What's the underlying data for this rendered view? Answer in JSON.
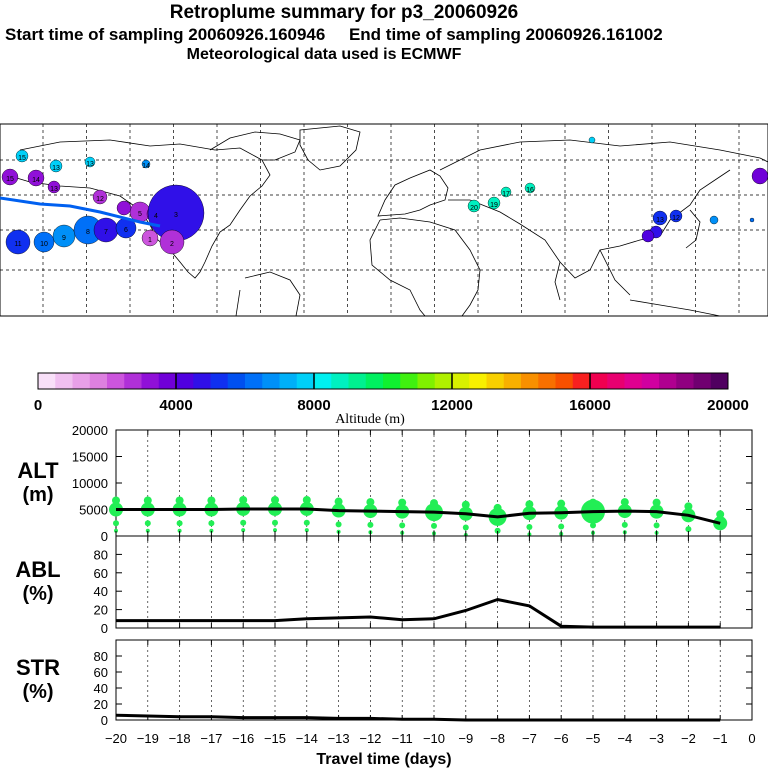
{
  "header": {
    "title": "Retroplume summary for p3_20060926",
    "sampling_line": "Start time of sampling 20060926.160946     End time of sampling 20060926.161002",
    "met_line": "Meteorological data used is ECMWF"
  },
  "map": {
    "numbers_near_points": [
      "15",
      "13",
      "13",
      "14",
      "16",
      "17",
      "19",
      "20",
      "15",
      "14",
      "13",
      "12",
      "11",
      "10",
      "9",
      "8",
      "7",
      "6",
      "5",
      "4",
      "3",
      "2",
      "1",
      "13",
      "12"
    ]
  },
  "colorbar": {
    "tick_labels": [
      "0",
      "4000",
      "8000",
      "12000",
      "16000",
      "20000"
    ],
    "label": "Altitude (m)",
    "colors": [
      "#f8e0f8",
      "#f0c0f0",
      "#e8a0e8",
      "#dd80e0",
      "#cc55dd",
      "#b030d8",
      "#9010d8",
      "#7000d8",
      "#5000e0",
      "#3010e8",
      "#1030f0",
      "#0050f0",
      "#0070f8",
      "#0090f8",
      "#00b0f8",
      "#00d0f8",
      "#00f0f0",
      "#00f0c0",
      "#00f090",
      "#00f060",
      "#10f030",
      "#40f010",
      "#80f000",
      "#b0f000",
      "#d8f000",
      "#f8f000",
      "#f8d000",
      "#f8b000",
      "#f89000",
      "#f87000",
      "#f85000",
      "#f82020",
      "#f00050",
      "#e80070",
      "#e00090",
      "#d000a0",
      "#b00090",
      "#900080",
      "#700070",
      "#500060"
    ]
  },
  "chart_data": [
    {
      "type": "line",
      "panel": "ALT",
      "ylabel_line1": "ALT",
      "ylabel_line2": "(m)",
      "ylim": [
        0,
        20000
      ],
      "y_ticks": [
        "0",
        "5000",
        "10000",
        "15000",
        "20000"
      ],
      "x": [
        -20,
        -19,
        -18,
        -17,
        -16,
        -15,
        -14,
        -13,
        -12,
        -11,
        -10,
        -9,
        -8,
        -7,
        -6,
        -5,
        -4,
        -3,
        -2,
        -1
      ],
      "values": [
        5000,
        5000,
        5000,
        5000,
        5100,
        5100,
        5100,
        4800,
        4700,
        4600,
        4500,
        4200,
        3600,
        4300,
        4400,
        4600,
        4700,
        4600,
        3900,
        2400
      ],
      "scatter_color": "#22ee55"
    },
    {
      "type": "line",
      "panel": "ABL",
      "ylabel_line1": "ABL",
      "ylabel_line2": "(%)",
      "ylim": [
        0,
        100
      ],
      "y_ticks": [
        "0",
        "20",
        "40",
        "60",
        "80"
      ],
      "x": [
        -20,
        -19,
        -18,
        -17,
        -16,
        -15,
        -14,
        -13,
        -12,
        -11,
        -10,
        -9,
        -8,
        -7,
        -6,
        -5,
        -4,
        -3,
        -2,
        -1
      ],
      "values": [
        8,
        8,
        8,
        8,
        8,
        8,
        10,
        11,
        12,
        9,
        10,
        19,
        31,
        24,
        2,
        1,
        1,
        1,
        1,
        1
      ]
    },
    {
      "type": "line",
      "panel": "STR",
      "ylabel_line1": "STR",
      "ylabel_line2": "(%)",
      "ylim": [
        0,
        100
      ],
      "y_ticks": [
        "0",
        "20",
        "40",
        "60",
        "80"
      ],
      "x": [
        -20,
        -19,
        -18,
        -17,
        -16,
        -15,
        -14,
        -13,
        -12,
        -11,
        -10,
        -9,
        -8,
        -7,
        -6,
        -5,
        -4,
        -3,
        -2,
        -1
      ],
      "values": [
        6,
        5,
        4,
        4,
        3,
        3,
        3,
        2,
        2,
        1,
        1,
        0,
        0,
        0,
        0,
        0,
        0,
        0,
        0,
        0
      ],
      "x_tick_labels": [
        "−20",
        "−19",
        "−18",
        "−17",
        "−16",
        "−15",
        "−14",
        "−13",
        "−12",
        "−11",
        "−10",
        "−9",
        "−8",
        "−7",
        "−6",
        "−5",
        "−4",
        "−3",
        "−2",
        "−1",
        "0"
      ],
      "xlabel": "Travel time (days)"
    }
  ]
}
